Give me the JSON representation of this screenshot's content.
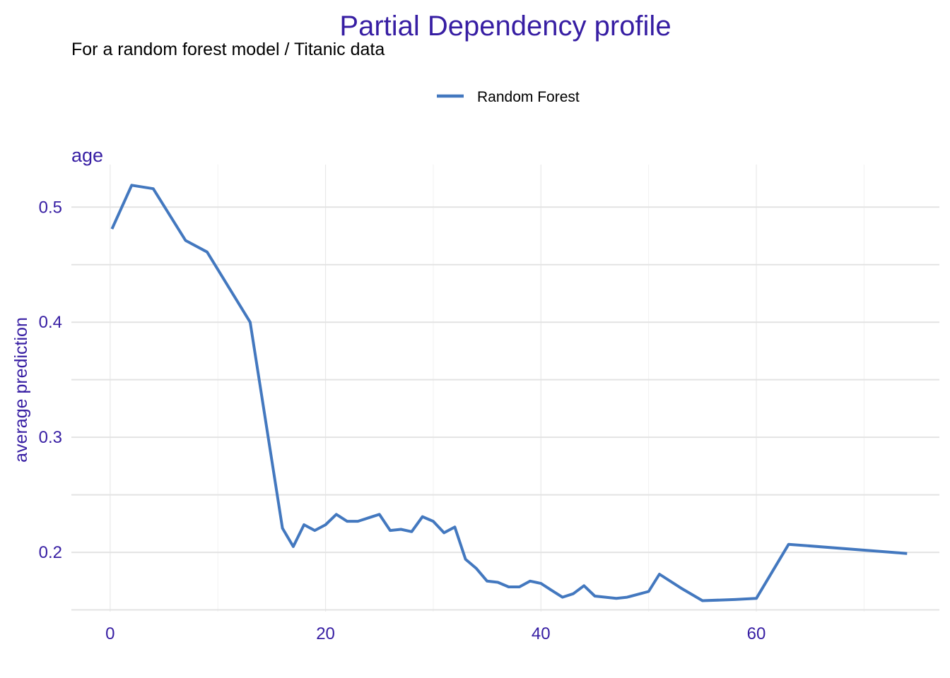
{
  "chart_data": {
    "type": "line",
    "title": "Partial Dependency profile",
    "subtitle": "For a random forest model / Titanic data",
    "facet_label": "age",
    "xlabel": "",
    "ylabel": "average prediction",
    "legend_position": "top",
    "grid": true,
    "xlim": [
      -3.6,
      77
    ],
    "ylim": [
      0.1485,
      0.537
    ],
    "x_ticks": [
      0,
      20,
      40,
      60
    ],
    "y_ticks": [
      0.2,
      0.3,
      0.4,
      0.5
    ],
    "x_tick_labels": [
      "0",
      "20",
      "40",
      "60"
    ],
    "y_tick_labels": [
      "0.2",
      "0.3",
      "0.4",
      "0.5"
    ],
    "series": [
      {
        "name": "Random Forest",
        "x": [
          0.17,
          2,
          4,
          7,
          9,
          13,
          16,
          17,
          18,
          19,
          20,
          21,
          22,
          23,
          24,
          25,
          26,
          27,
          28,
          29,
          30,
          31,
          32,
          33,
          34,
          35,
          36,
          37,
          38,
          39,
          40,
          41,
          42,
          43,
          44,
          45,
          47,
          48,
          50,
          51,
          53,
          55,
          58,
          60,
          63,
          74
        ],
        "values": [
          0.481,
          0.519,
          0.516,
          0.471,
          0.461,
          0.4,
          0.221,
          0.205,
          0.224,
          0.219,
          0.224,
          0.233,
          0.227,
          0.227,
          0.23,
          0.233,
          0.219,
          0.22,
          0.218,
          0.231,
          0.227,
          0.217,
          0.222,
          0.194,
          0.186,
          0.175,
          0.174,
          0.17,
          0.17,
          0.175,
          0.173,
          0.167,
          0.161,
          0.164,
          0.171,
          0.162,
          0.16,
          0.161,
          0.166,
          0.181,
          0.169,
          0.158,
          0.159,
          0.16,
          0.207,
          0.199
        ]
      }
    ]
  },
  "colors": {
    "title": "#371EA3",
    "series": "#4378BF",
    "grid": "#e3e3e3",
    "tick_text": "#371EA3",
    "text": "#000000"
  }
}
